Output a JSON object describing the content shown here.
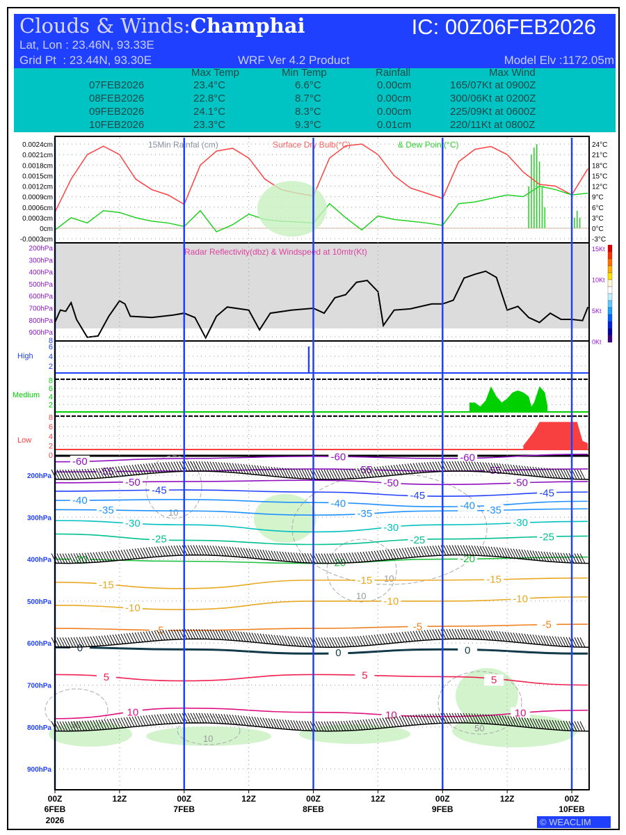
{
  "header": {
    "title_prefix": "Clouds & Winds:",
    "location": "Champhai",
    "ic": "IC: 00Z06FEB2026",
    "latlon": "Lat, Lon : 23.46N, 93.33E",
    "gridpt": "Grid Pt  : 23.44N, 93.30E",
    "product": "WRF Ver 4.2 Product",
    "elev": "Model Elv :1172.05m"
  },
  "summary": {
    "columns": [
      "Max Temp",
      "Min Temp",
      "Rainfall",
      "Max Wind"
    ],
    "rows": [
      {
        "date": "07FEB2026",
        "max": "23.4°C",
        "min": "6.6°C",
        "rain": "0.00cm",
        "wind": "165/07Kt at 0900Z"
      },
      {
        "date": "08FEB2026",
        "max": "22.8°C",
        "min": "8.7°C",
        "rain": "0.00cm",
        "wind": "300/06Kt at 0200Z"
      },
      {
        "date": "09FEB2026",
        "max": "24.1°C",
        "min": "8.3°C",
        "rain": "0.00cm",
        "wind": "225/09Kt at 0600Z"
      },
      {
        "date": "10FEB2026",
        "max": "23.3°C",
        "min": "9.3°C",
        "rain": "0.01cm",
        "wind": "220/11Kt at 0800Z"
      }
    ]
  },
  "logo": "WEACLIM",
  "colors": {
    "header": "#2040ff",
    "table": "#00c4c4",
    "temp": "#ff4040",
    "dew": "#20d020",
    "day_line": "#2040ff"
  },
  "chart_data": [
    {
      "type": "line",
      "title_rain": "15Min Rainfal (cm)",
      "title_temp": "Surface Dry Bulb(°C)",
      "title_dew": "& Dew Point(°C)",
      "left_ticks": [
        "-0.0003cm",
        "0cm",
        "0.0003cm",
        "0.0006cm",
        "0.0009cm",
        "0.0012cm",
        "0.0015cm",
        "0.0018cm",
        "0.0021cm",
        "0.0024cm"
      ],
      "right_ticks": [
        "-3°C",
        "0°C",
        "3°C",
        "6°C",
        "9°C",
        "12°C",
        "15°C",
        "18°C",
        "21°C",
        "24°C"
      ],
      "x_hours": [
        0,
        3,
        6,
        9,
        12,
        15,
        18,
        21,
        24,
        27,
        30,
        33,
        36,
        39,
        42,
        45,
        48,
        51,
        54,
        57,
        60,
        63,
        66,
        69,
        72,
        75,
        78,
        81,
        84,
        87,
        90,
        93,
        96,
        99
      ],
      "series": [
        {
          "name": "Surface Dry Bulb",
          "values": [
            4.6,
            14,
            21,
            23.4,
            21,
            14,
            11,
            9.5,
            6.8,
            18,
            22,
            22.8,
            20,
            14,
            11,
            10,
            9.2,
            20,
            23.5,
            24,
            21,
            15,
            11.5,
            10,
            8.5,
            19,
            22.5,
            23.3,
            21,
            16,
            12.5,
            12,
            9.5,
            17
          ]
        },
        {
          "name": "Dew Point",
          "values": [
            -0.5,
            3,
            1.5,
            5,
            4.5,
            3,
            2,
            1.5,
            0.5,
            5,
            -1,
            1,
            4,
            2.5,
            2,
            1.8,
            1.5,
            7,
            3,
            -0.5,
            3.5,
            2.5,
            2,
            1.5,
            0.8,
            7,
            7.5,
            8.5,
            9.5,
            9,
            12,
            11,
            9.5,
            10
          ]
        }
      ],
      "rain_bars": [
        [
          88,
          0.0012
        ],
        [
          88.5,
          0.0021
        ],
        [
          89,
          0.0023
        ],
        [
          89.5,
          0.0024
        ],
        [
          90,
          0.0019
        ],
        [
          90.5,
          0.0012
        ],
        [
          91,
          0.0006
        ],
        [
          96.5,
          0.0003
        ],
        [
          97,
          0.0005
        ],
        [
          97.5,
          0.0003
        ]
      ]
    },
    {
      "type": "line",
      "title": "Radar Reflectivity(dbz) & Windspeed at 10mtr(Kt)",
      "left_ticks": [
        "200hPa",
        "300hPa",
        "400hPa",
        "500hPa",
        "600hPa",
        "700hPa",
        "800hPa",
        "900hPa"
      ],
      "right_ticks": [
        "15Kt",
        "10Kt",
        "5Kt",
        "0Kt"
      ],
      "windspeed": [
        [
          0,
          3
        ],
        [
          1,
          5
        ],
        [
          2,
          4.8
        ],
        [
          3,
          6.2
        ],
        [
          4,
          3.5
        ],
        [
          6,
          0.6
        ],
        [
          8,
          0.8
        ],
        [
          10,
          4
        ],
        [
          12,
          6.5
        ],
        [
          13,
          6
        ],
        [
          14,
          4
        ],
        [
          18,
          3.8
        ],
        [
          22,
          4.2
        ],
        [
          24,
          4.5
        ],
        [
          26,
          3.8
        ],
        [
          28,
          0.5
        ],
        [
          30,
          4
        ],
        [
          32,
          5.5
        ],
        [
          36,
          5
        ],
        [
          38,
          1.8
        ],
        [
          40,
          4.5
        ],
        [
          44,
          5
        ],
        [
          48,
          5.3
        ],
        [
          50,
          4.5
        ],
        [
          52,
          7
        ],
        [
          54,
          7.5
        ],
        [
          56,
          9.5
        ],
        [
          58,
          9.8
        ],
        [
          60,
          8
        ],
        [
          61,
          2.5
        ],
        [
          63,
          5
        ],
        [
          66,
          5.2
        ],
        [
          70,
          6
        ],
        [
          72,
          6
        ],
        [
          74,
          6.6
        ],
        [
          76,
          10.2
        ],
        [
          78,
          10.8
        ],
        [
          80,
          11.3
        ],
        [
          82,
          10.3
        ],
        [
          84,
          5
        ],
        [
          86,
          5.6
        ],
        [
          88,
          3.8
        ],
        [
          90,
          3
        ],
        [
          92,
          4.5
        ],
        [
          94,
          3.5
        ],
        [
          96,
          3.5
        ],
        [
          98,
          3.3
        ],
        [
          99,
          5.5
        ]
      ]
    },
    {
      "type": "bar",
      "panels": [
        {
          "name": "High",
          "color": "#2040ff",
          "ticks": [
            "8",
            "6",
            "4",
            "2"
          ],
          "values": [
            [
              47,
              6
            ],
            [
              47.3,
              6
            ]
          ]
        },
        {
          "name": "Medium",
          "color": "#00d000",
          "ticks": [
            "8",
            "6",
            "4",
            "2"
          ],
          "values": [
            [
              77,
              2.5
            ],
            [
              78,
              2.5
            ],
            [
              79,
              1.5
            ],
            [
              80,
              3
            ],
            [
              81,
              6.5
            ],
            [
              82,
              4
            ],
            [
              83,
              2.5
            ],
            [
              84,
              3.5
            ],
            [
              85,
              5
            ],
            [
              86,
              5.5
            ],
            [
              87,
              5
            ],
            [
              88,
              4
            ],
            [
              88.5,
              1.5
            ],
            [
              89,
              2.5
            ],
            [
              90,
              6.5
            ],
            [
              91,
              5
            ],
            [
              91.5,
              1.5
            ]
          ]
        },
        {
          "name": "Low",
          "color": "#f84040",
          "ticks": [
            "8",
            "6",
            "4",
            "2",
            "0"
          ],
          "values": [
            [
              87,
              2
            ],
            [
              88,
              3.5
            ],
            [
              89,
              5
            ],
            [
              90,
              7
            ],
            [
              93,
              7
            ],
            [
              96,
              7
            ],
            [
              97,
              7
            ],
            [
              98,
              3
            ],
            [
              99,
              2.5
            ]
          ]
        }
      ]
    },
    {
      "type": "contour",
      "y_ticks": [
        "200hPa",
        "300hPa",
        "400hPa",
        "500hPa",
        "600hPa",
        "700hPa",
        "800hPa",
        "900hPa"
      ],
      "x_ticks": [
        {
          "t": "00Z",
          "d": "6FEB",
          "y": "2026"
        },
        {
          "t": "12Z"
        },
        {
          "t": "00Z",
          "d": "7FEB"
        },
        {
          "t": "12Z"
        },
        {
          "t": "00Z",
          "d": "8FEB"
        },
        {
          "t": "12Z"
        },
        {
          "t": "00Z",
          "d": "9FEB"
        },
        {
          "t": "12Z"
        },
        {
          "t": "00Z",
          "d": "10FEB"
        }
      ],
      "isotherm_hours": [
        0,
        24,
        48,
        72,
        99
      ],
      "isotherms": [
        {
          "label": "-60",
          "color": "#9010c0",
          "p": [
            168,
            160,
            155,
            160,
            150
          ]
        },
        {
          "label": "-55",
          "color": "#9010c0",
          "p": [
            192,
            190,
            185,
            190,
            185
          ]
        },
        {
          "label": "-50",
          "color": "#9010c0",
          "p": [
            218,
            215,
            212,
            222,
            215
          ]
        },
        {
          "label": "-45",
          "color": "#2040ff",
          "p": [
            238,
            235,
            240,
            250,
            240
          ]
        },
        {
          "label": "-40",
          "color": "#1e90ff",
          "p": [
            260,
            258,
            265,
            275,
            262
          ]
        },
        {
          "label": "-35",
          "color": "#1e90ff",
          "p": [
            282,
            285,
            295,
            285,
            280
          ]
        },
        {
          "label": "-30",
          "color": "#00c0c0",
          "p": [
            308,
            318,
            335,
            318,
            310
          ]
        },
        {
          "label": "-25",
          "color": "#00c090",
          "p": [
            340,
            355,
            365,
            352,
            345
          ]
        },
        {
          "label": "-20",
          "color": "#20c040",
          "p": [
            400,
            405,
            410,
            400,
            395
          ]
        },
        {
          "label": "-15",
          "color": "#e8a820",
          "p": [
            455,
            470,
            450,
            450,
            445
          ]
        },
        {
          "label": "-10",
          "color": "#e8a820",
          "p": [
            510,
            520,
            500,
            500,
            490
          ]
        },
        {
          "label": "-5",
          "color": "#f08020",
          "p": [
            565,
            570,
            565,
            560,
            555
          ]
        },
        {
          "label": "0",
          "color": "#103848",
          "p": [
            610,
            615,
            625,
            615,
            625
          ]
        },
        {
          "label": "5",
          "color": "#f02050",
          "p": [
            675,
            690,
            675,
            680,
            700
          ]
        },
        {
          "label": "10",
          "color": "#e01080",
          "p": [
            780,
            755,
            765,
            775,
            760
          ]
        }
      ],
      "rh_labels": [
        "10",
        "10",
        "10",
        "30",
        "50",
        "10"
      ],
      "wind_levels_hpa": [
        200,
        400,
        600,
        800
      ]
    }
  ]
}
